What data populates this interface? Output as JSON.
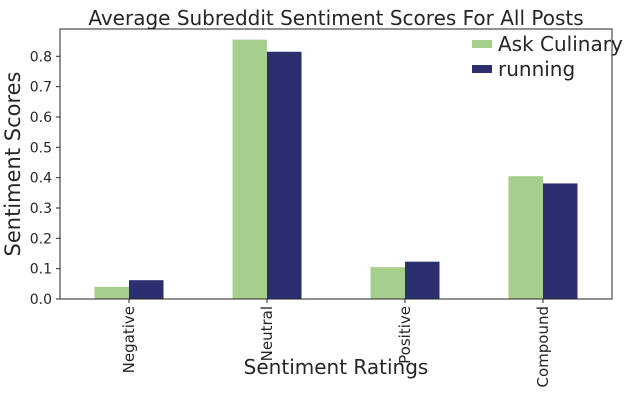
{
  "chart_data": {
    "type": "bar",
    "title": "Average Subreddit Sentiment Scores For All Posts",
    "xlabel": "Sentiment Ratings",
    "ylabel": "Sentiment Scores",
    "categories": [
      "Negative",
      "Neutral",
      "Positive",
      "Compound"
    ],
    "series": [
      {
        "name": "Ask Culinary",
        "color": "#a6cf8d",
        "values": [
          0.04,
          0.855,
          0.105,
          0.405
        ]
      },
      {
        "name": "running",
        "color": "#2b2f6e",
        "values": [
          0.062,
          0.815,
          0.123,
          0.381
        ]
      }
    ],
    "ylim": [
      0,
      0.89
    ],
    "yticks": [
      0.0,
      0.1,
      0.2,
      0.3,
      0.4,
      0.5,
      0.6,
      0.7,
      0.8
    ],
    "ytick_labels": [
      "0.0",
      "0.1",
      "0.2",
      "0.3",
      "0.4",
      "0.5",
      "0.6",
      "0.7",
      "0.8"
    ],
    "grid": false,
    "legend_position": "top-right"
  }
}
